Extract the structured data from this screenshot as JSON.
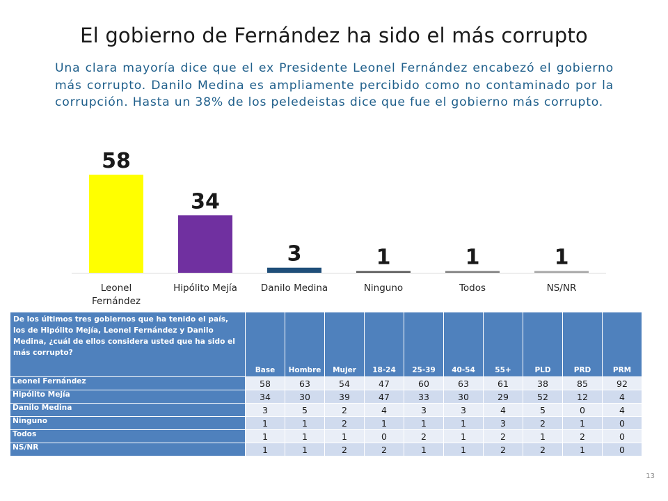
{
  "title": "El gobierno de Fernández ha sido el más corrupto",
  "subtitle": "Una clara mayoría dice que el ex Presidente Leonel Fernández encabezó el gobierno más corrupto. Danilo Medina es ampliamente percibido como no contaminado por la corrupción. Hasta un 38% de los peledeistas dice que fue el gobierno más corrupto.",
  "chart_data": {
    "type": "bar",
    "categories": [
      "Leonel Fernández",
      "Hipólito Mejía",
      "Danilo Medina",
      "Ninguno",
      "Todos",
      "NS/NR"
    ],
    "values": [
      58,
      34,
      3,
      1,
      1,
      1
    ],
    "colors": [
      "#ffff00",
      "#7030a0",
      "#1f4e79",
      "#595959",
      "#7f7f7f",
      "#a6a6a6"
    ],
    "title": "",
    "xlabel": "",
    "ylabel": "",
    "ylim": [
      0,
      58
    ],
    "grid": false,
    "legend": "none"
  },
  "table": {
    "question": "De los últimos tres gobiernos que ha tenido el país, los de Hipólito Mejía, Leonel Fernández y Danilo Medina, ¿cuál de ellos considera usted que ha sido el más corrupto?",
    "columns": [
      "Base",
      "Hombre",
      "Mujer",
      "18-24",
      "25-39",
      "40-54",
      "55+",
      "PLD",
      "PRD",
      "PRM"
    ],
    "rows": [
      {
        "label": "Leonel Fernández",
        "values": [
          "58",
          "63",
          "54",
          "47",
          "60",
          "63",
          "61",
          "38",
          "85",
          "92"
        ]
      },
      {
        "label": "Hipólito Mejía",
        "values": [
          "34",
          "30",
          "39",
          "47",
          "33",
          "30",
          "29",
          "52",
          "12",
          "4"
        ]
      },
      {
        "label": "Danilo Medina",
        "values": [
          "3",
          "5",
          "2",
          "4",
          "3",
          "3",
          "4",
          "5",
          "0",
          "4"
        ]
      },
      {
        "label": "Ninguno",
        "values": [
          "1",
          "1",
          "2",
          "1",
          "1",
          "1",
          "3",
          "2",
          "1",
          "0"
        ]
      },
      {
        "label": "Todos",
        "values": [
          "1",
          "1",
          "1",
          "0",
          "2",
          "1",
          "2",
          "1",
          "2",
          "0"
        ]
      },
      {
        "label": "NS/NR",
        "values": [
          "1",
          "1",
          "2",
          "2",
          "1",
          "1",
          "2",
          "2",
          "1",
          "0"
        ]
      }
    ]
  },
  "page_number": "13"
}
